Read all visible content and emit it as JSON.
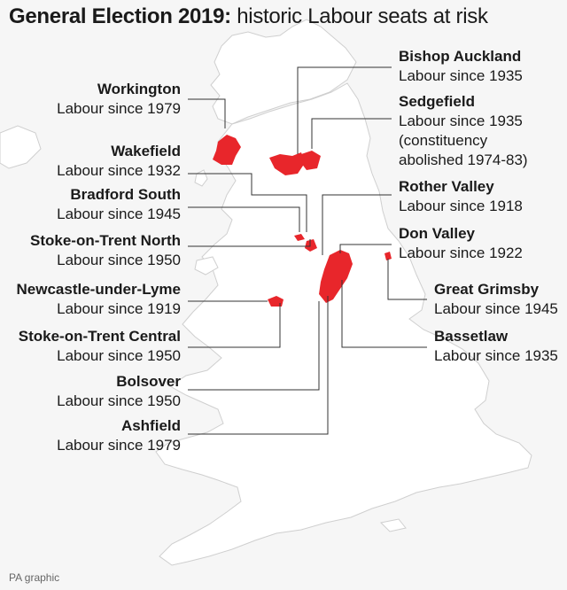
{
  "title": {
    "bold": "General Election 2019:",
    "rest": "historic Labour seats at risk"
  },
  "credit": "PA graphic",
  "colors": {
    "seat": "#e8262b",
    "land": "#ffffff",
    "sea": "#ececec",
    "border": "#cfcfcf",
    "leader": "#333333"
  },
  "constituencies": [
    {
      "id": "workington",
      "name": "Workington",
      "since": "Labour since 1979"
    },
    {
      "id": "wakefield",
      "name": "Wakefield",
      "since": "Labour since 1932"
    },
    {
      "id": "bradford-south",
      "name": "Bradford South",
      "since": "Labour since 1945"
    },
    {
      "id": "stoke-north",
      "name": "Stoke-on-Trent North",
      "since": "Labour since 1950"
    },
    {
      "id": "newcastle-lyme",
      "name": "Newcastle-under-Lyme",
      "since": "Labour since 1919"
    },
    {
      "id": "stoke-central",
      "name": "Stoke-on-Trent Central",
      "since": "Labour since 1950"
    },
    {
      "id": "bolsover",
      "name": "Bolsover",
      "since": "Labour since 1950"
    },
    {
      "id": "ashfield",
      "name": "Ashfield",
      "since": "Labour since 1979"
    },
    {
      "id": "bishop-auckland",
      "name": "Bishop Auckland",
      "since": "Labour since 1935"
    },
    {
      "id": "sedgefield",
      "name": "Sedgefield",
      "since": "Labour since 1935",
      "note1": "(constituency",
      "note2": "abolished 1974-83)"
    },
    {
      "id": "rother-valley",
      "name": "Rother Valley",
      "since": "Labour since 1918"
    },
    {
      "id": "don-valley",
      "name": "Don Valley",
      "since": "Labour since 1922"
    },
    {
      "id": "great-grimsby",
      "name": "Great Grimsby",
      "since": "Labour since 1945"
    },
    {
      "id": "bassetlaw",
      "name": "Bassetlaw",
      "since": "Labour since 1935"
    }
  ]
}
